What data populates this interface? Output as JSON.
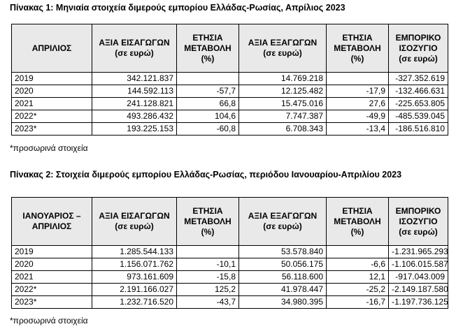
{
  "table1": {
    "caption": "Πίνακας 1: Μηνιαία στοιχεία διμερούς εμπορίου Ελλάδας-Ρωσίας, Απρίλιος 2023",
    "headers": [
      [
        "ΑΠΡΙΛΙΟΣ"
      ],
      [
        "ΑΞΙΑ ΕΙΣΑΓΩΓΩΝ",
        "(σε ευρώ)"
      ],
      [
        "ΕΤΗΣΙΑ",
        "ΜΕΤΑΒΟΛΗ",
        "(%)"
      ],
      [
        "ΑΞΙΑ ΕΞΑΓΩΓΩΝ",
        "(σε ευρώ)"
      ],
      [
        "ΕΤΗΣΙΑ",
        "ΜΕΤΑΒΟΛΗ",
        "(%)"
      ],
      [
        "ΕΜΠΟΡΙΚΟ",
        "ΙΣΟΖΥΓΙΟ",
        "(σε ευρώ)"
      ]
    ],
    "rows": [
      [
        "2019",
        "342.121.837",
        "",
        "14.769.218",
        "",
        "-327.352.619"
      ],
      [
        "2020",
        "144.592.113",
        "-57,7",
        "12.125.482",
        "-17,9",
        "-132.466.631"
      ],
      [
        "2021",
        "241.128.821",
        "66,8",
        "15.475.016",
        "27,6",
        "-225.653.805"
      ],
      [
        "2022*",
        "493.286.432",
        "104,6",
        "7.747.387",
        "-49,9",
        "-485.539.045"
      ],
      [
        "2023*",
        "193.225.153",
        "-60,8",
        "6.708.343",
        "-13,4",
        "-186.516.810"
      ]
    ],
    "note": "*προσωρινά στοιχεία"
  },
  "table2": {
    "caption": "Πίνακας 2: Στοιχεία διμερούς εμπορίου Ελλάδας-Ρωσίας, περιόδου Ιανουαρίου-Απριλίου 2023",
    "headers": [
      [
        "ΙΑΝΟΥΑΡΙΟΣ –",
        "ΑΠΡΙΛΙΟΣ"
      ],
      [
        "ΑΞΙΑ ΕΙΣΑΓΩΓΩΝ",
        "(σε ευρώ)"
      ],
      [
        "ΕΤΗΣΙΑ",
        "ΜΕΤΑΒΟΛΗ",
        "(%)"
      ],
      [
        "ΑΞΙΑ ΕΞΑΓΩΓΩΝ",
        "(σε ευρώ)"
      ],
      [
        "ΕΤΗΣΙΑ",
        "ΜΕΤΑΒΟΛΗ",
        "(%)"
      ],
      [
        "ΕΜΠΟΡΙΚΟ",
        "ΙΣΟΖΥΓΙΟ",
        "(σε ευρώ)"
      ]
    ],
    "rows": [
      [
        "2019",
        "1.285.544.133",
        "",
        "53.578.840",
        "",
        "-1.231.965.293"
      ],
      [
        "2020",
        "1.156.071.762",
        "-10,1",
        "50.056.175",
        "-6,6",
        "-1.106.015.587"
      ],
      [
        "2021",
        "973.161.609",
        "-15,8",
        "56.118.600",
        "12,1",
        "-917.043.009"
      ],
      [
        "2022*",
        "2.191.166.027",
        "125,2",
        "41.978.447",
        "-25,2",
        "-2.149.187.580"
      ],
      [
        "2023*",
        "1.232.716.520",
        "-43,7",
        "34.980.395",
        "-16,7",
        "-1.197.736.125"
      ]
    ],
    "note": "*προσωρινά στοιχεία"
  }
}
